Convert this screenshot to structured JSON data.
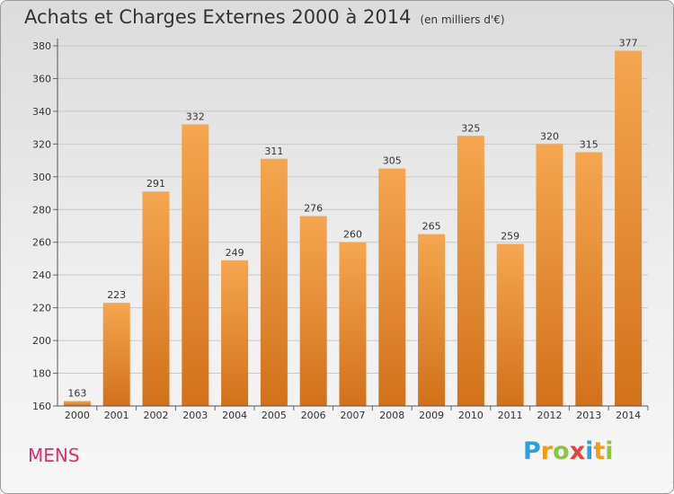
{
  "header": {
    "title": "Achats et Charges Externes 2000 à 2014",
    "subtitle": "(en milliers d'€)"
  },
  "footer": {
    "commune": "MENS",
    "logo_letters": [
      "P",
      "r",
      "o",
      "x",
      "i",
      "t",
      "i"
    ]
  },
  "colors": {
    "bar_top": "#f5a650",
    "bar_bottom": "#d2711c",
    "commune": "#d9326d"
  },
  "chart_data": {
    "type": "bar",
    "title": "Achats et Charges Externes 2000 à 2014",
    "subtitle": "(en milliers d'€)",
    "categories": [
      "2000",
      "2001",
      "2002",
      "2003",
      "2004",
      "2005",
      "2006",
      "2007",
      "2008",
      "2009",
      "2010",
      "2011",
      "2012",
      "2013",
      "2014"
    ],
    "values": [
      163,
      223,
      291,
      332,
      249,
      311,
      276,
      260,
      305,
      265,
      325,
      259,
      320,
      315,
      377
    ],
    "ylim": [
      160,
      380
    ],
    "yticks": [
      160,
      180,
      200,
      220,
      240,
      260,
      280,
      300,
      320,
      340,
      360,
      380
    ],
    "grid": true,
    "data_labels": true
  }
}
